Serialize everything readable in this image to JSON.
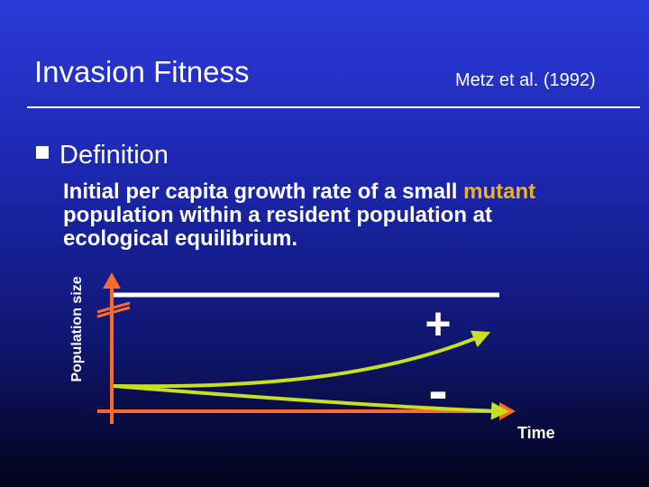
{
  "slide": {
    "title": "Invasion Fitness",
    "reference": "Metz et al. (1992)",
    "bullet": "Definition",
    "definition": {
      "part1": "Initial per capita growth rate of a small ",
      "highlight": "mutant",
      "part2": " population within a resident population at ecological equilibrium."
    }
  },
  "diagram": {
    "y_axis_label": "Population size",
    "x_axis_label": "Time",
    "plus_sign": "+",
    "minus_sign": "-",
    "colors": {
      "axes": "#ff6a2a",
      "resident_line": "#ffffff",
      "mutant_curves": "#c8e020",
      "highlight_text": "#f0b020"
    }
  }
}
